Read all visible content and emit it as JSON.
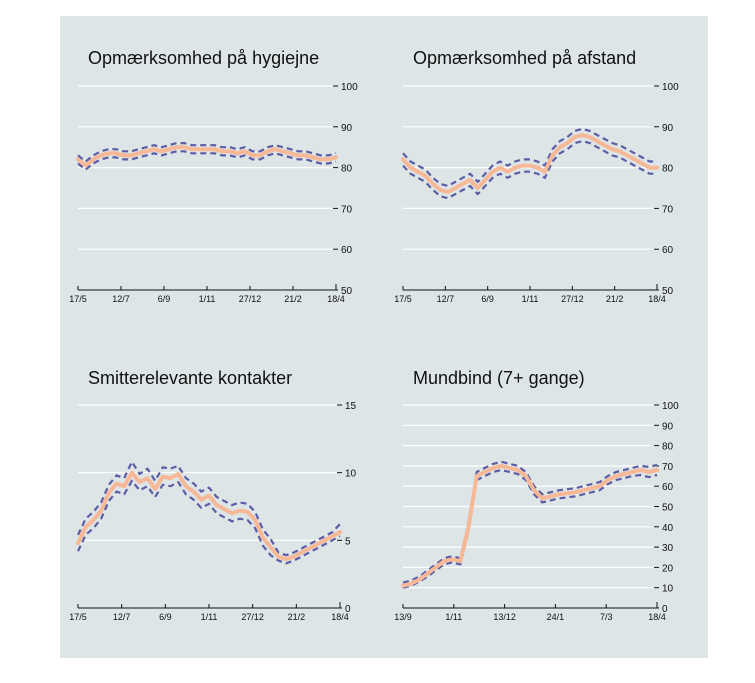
{
  "chart_data": [
    {
      "type": "line",
      "title": "Opmærksomhed på hygiejne",
      "ylim": [
        50,
        100
      ],
      "yticks": [
        50,
        60,
        70,
        80,
        90,
        100
      ],
      "grid": true,
      "xlabels": [
        "17/5",
        "12/7",
        "6/9",
        "1/11",
        "27/12",
        "21/2",
        "18/4"
      ],
      "series": [
        {
          "values": [
            82,
            80.5,
            82,
            83,
            83.5,
            83.5,
            83,
            83,
            83.5,
            84,
            84.5,
            84,
            84.5,
            85,
            85,
            84.5,
            84.5,
            84.5,
            84.5,
            84,
            84,
            83.5,
            84,
            83,
            83,
            84,
            84.5,
            84,
            83.5,
            83,
            83,
            82.5,
            82,
            82,
            82.5
          ],
          "lower": [
            81,
            79.5,
            81,
            82,
            82.5,
            82.5,
            82,
            82,
            82.5,
            83,
            83.5,
            83,
            83.5,
            84,
            84,
            83.5,
            83.5,
            83.5,
            83.5,
            83,
            83,
            82.5,
            83,
            82,
            82,
            83,
            83.5,
            83,
            82.5,
            82,
            82,
            81.5,
            81,
            81,
            81.5
          ],
          "upper": [
            83,
            81.5,
            83,
            84,
            84.5,
            84.5,
            84,
            84,
            84.5,
            85,
            85.5,
            85,
            85.5,
            86,
            86,
            85.5,
            85.5,
            85.5,
            85.5,
            85,
            85,
            84.5,
            85,
            84,
            84,
            85,
            85.5,
            85,
            84.5,
            84,
            84,
            83.5,
            83,
            83,
            83.5
          ]
        }
      ]
    },
    {
      "type": "line",
      "title": "Opmærksomhed på afstand",
      "ylim": [
        50,
        100
      ],
      "yticks": [
        50,
        60,
        70,
        80,
        90,
        100
      ],
      "grid": true,
      "xlabels": [
        "17/5",
        "12/7",
        "6/9",
        "1/11",
        "27/12",
        "21/2",
        "18/4"
      ],
      "series": [
        {
          "values": [
            82,
            80,
            79,
            78,
            76,
            74.5,
            74,
            75,
            76,
            77,
            75,
            77,
            79,
            80,
            79,
            80,
            80.5,
            80.5,
            80,
            79,
            83,
            85,
            86,
            87.5,
            88,
            87.5,
            86.5,
            85.5,
            84.5,
            84,
            83,
            82,
            81,
            80,
            80
          ],
          "lower": [
            80.5,
            78.5,
            77.5,
            76.5,
            74.5,
            73,
            72.5,
            73.5,
            74.5,
            75.5,
            73.5,
            75.5,
            77.5,
            78.5,
            77.5,
            78.5,
            79,
            79,
            78.5,
            77.5,
            81.5,
            83.5,
            84.5,
            86,
            86.5,
            86,
            85,
            84,
            83,
            82.5,
            81.5,
            80.5,
            79.5,
            78.5,
            78.5
          ],
          "upper": [
            83.5,
            81.5,
            80.5,
            79.5,
            77.5,
            76,
            75.5,
            76.5,
            77.5,
            78.5,
            76.5,
            78.5,
            80.5,
            81.5,
            80.5,
            81.5,
            82,
            82,
            81.5,
            80.5,
            84.5,
            86.5,
            87.5,
            89,
            89.5,
            89,
            88,
            87,
            86,
            85.5,
            84.5,
            83.5,
            82.5,
            81.5,
            81.5
          ]
        }
      ]
    },
    {
      "type": "line",
      "title": "Smitterelevante kontakter",
      "ylim": [
        0,
        15
      ],
      "yticks": [
        0,
        5,
        10,
        15
      ],
      "grid": true,
      "xlabels": [
        "17/5",
        "12/7",
        "6/9",
        "1/11",
        "27/12",
        "21/2",
        "18/4"
      ],
      "series": [
        {
          "values": [
            4.8,
            6,
            6.5,
            7.2,
            8.5,
            9.2,
            9,
            10,
            9.3,
            9.6,
            8.8,
            9.7,
            9.6,
            9.9,
            9,
            8.6,
            8,
            8.3,
            7.6,
            7.3,
            7,
            7.2,
            7.1,
            6.5,
            5.2,
            4.5,
            3.8,
            3.6,
            3.8,
            4.1,
            4.4,
            4.7,
            5,
            5.3,
            5.6
          ],
          "lower": [
            4.2,
            5.4,
            5.9,
            6.6,
            7.9,
            8.6,
            8.4,
            9.4,
            8.7,
            9,
            8.2,
            9.1,
            9,
            9.3,
            8.4,
            8,
            7.4,
            7.7,
            7,
            6.7,
            6.4,
            6.6,
            6.5,
            5.9,
            4.6,
            3.9,
            3.5,
            3.3,
            3.5,
            3.8,
            4.1,
            4.4,
            4.7,
            5,
            5.3
          ],
          "upper": [
            5.4,
            6.6,
            7.1,
            7.8,
            9.1,
            9.8,
            9.6,
            10.8,
            9.9,
            10.3,
            9.4,
            10.4,
            10.3,
            10.5,
            9.6,
            9.2,
            8.6,
            8.9,
            8.2,
            7.9,
            7.6,
            7.8,
            7.7,
            7.1,
            5.8,
            5.1,
            4.1,
            3.9,
            4.1,
            4.4,
            4.7,
            5,
            5.3,
            5.6,
            6.2
          ]
        }
      ]
    },
    {
      "type": "line",
      "title": "Mundbind (7+ gange)",
      "ylim": [
        0,
        100
      ],
      "yticks": [
        0,
        10,
        20,
        30,
        40,
        50,
        60,
        70,
        80,
        90,
        100
      ],
      "grid": true,
      "xlabels": [
        "13/9",
        "1/11",
        "13/12",
        "24/1",
        "7/3",
        "18/4"
      ],
      "series": [
        {
          "values": [
            11,
            12,
            14,
            17,
            20,
            23,
            24,
            23,
            40,
            65,
            67,
            69,
            70,
            69,
            68,
            65,
            58,
            54,
            55,
            56,
            56.5,
            57,
            58,
            59,
            60,
            63,
            65,
            66,
            67,
            68,
            67,
            68
          ],
          "lower": [
            10,
            11,
            13,
            15.5,
            18.5,
            21.5,
            22.5,
            21.5,
            38,
            63,
            65,
            67,
            68,
            67,
            66,
            63,
            56,
            52,
            53,
            54,
            54.5,
            55,
            56,
            57,
            58,
            61,
            63,
            64,
            65,
            65.5,
            64.5,
            65.5
          ],
          "upper": [
            12.5,
            13.5,
            15.5,
            18.5,
            21.5,
            24.5,
            25.5,
            24.5,
            42,
            67,
            69,
            71,
            72,
            71,
            70,
            67,
            60,
            56,
            57,
            58,
            58.5,
            59,
            60,
            61,
            62,
            65,
            67,
            68,
            69,
            70,
            69.5,
            70.5
          ]
        }
      ]
    }
  ]
}
